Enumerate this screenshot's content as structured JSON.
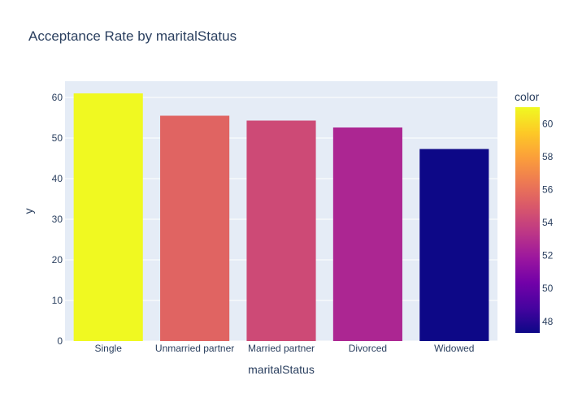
{
  "chart_data": {
    "type": "bar",
    "title": "Acceptance Rate by maritalStatus",
    "xlabel": "maritalStatus",
    "ylabel": "y",
    "categories": [
      "Single",
      "Unmarried partner",
      "Married partner",
      "Divorced",
      "Widowed"
    ],
    "values": [
      61.0,
      55.5,
      54.3,
      52.6,
      47.3
    ],
    "ylim": [
      0,
      64
    ],
    "yticks": [
      0,
      10,
      20,
      30,
      40,
      50,
      60
    ],
    "grid": true,
    "colorbar": {
      "title": "color",
      "range": [
        47.3,
        61.0
      ],
      "ticks": [
        48,
        50,
        52,
        54,
        56,
        58,
        60
      ],
      "colorscale": [
        "#0d0887",
        "#46039f",
        "#7201a8",
        "#9c179e",
        "#bd3786",
        "#d8576b",
        "#ed7953",
        "#fb9f3a",
        "#fdca26",
        "#f0f921"
      ]
    },
    "colors": {
      "plot_bg": "#e5ecf6",
      "grid": "#ffffff",
      "text": "#2a3f5f"
    }
  }
}
